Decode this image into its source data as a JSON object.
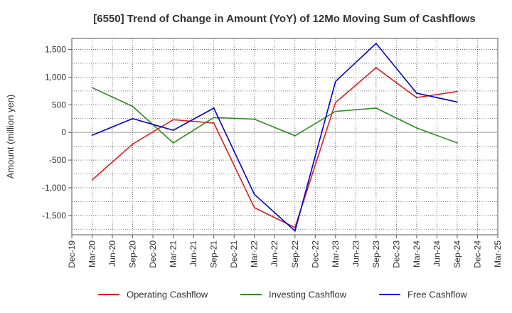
{
  "chart_data": {
    "type": "line",
    "title": "[6550]  Trend of Change in Amount (YoY) of 12Mo Moving Sum of Cashflows",
    "xlabel": "",
    "ylabel": "Amount (million yen)",
    "ylim": [
      -1850,
      1700
    ],
    "yticks": [
      1500,
      1000,
      500,
      0,
      -500,
      -1000,
      -1500
    ],
    "ytick_labels": [
      "1,500",
      "1,000",
      "500",
      "0",
      "-500",
      "-1,000",
      "-1,500"
    ],
    "categories": [
      "Dec-19",
      "Mar-20",
      "Jun-20",
      "Sep-20",
      "Dec-20",
      "Mar-21",
      "Jun-21",
      "Sep-21",
      "Dec-21",
      "Mar-22",
      "Jun-22",
      "Sep-22",
      "Dec-22",
      "Mar-23",
      "Jun-23",
      "Sep-23",
      "Dec-23",
      "Mar-24",
      "Jun-24",
      "Sep-24",
      "Dec-24",
      "Mar-25"
    ],
    "grid": true,
    "legend_position": "bottom",
    "series": [
      {
        "name": "Operating Cashflow",
        "color": "#e31a1c",
        "points": [
          {
            "x": "Mar-20",
            "y": -860
          },
          {
            "x": "Sep-20",
            "y": -210
          },
          {
            "x": "Mar-21",
            "y": 230
          },
          {
            "x": "Sep-21",
            "y": 170
          },
          {
            "x": "Mar-22",
            "y": -1360
          },
          {
            "x": "Sep-22",
            "y": -1720
          },
          {
            "x": "Mar-23",
            "y": 540
          },
          {
            "x": "Sep-23",
            "y": 1170
          },
          {
            "x": "Mar-24",
            "y": 630
          },
          {
            "x": "Sep-24",
            "y": 740
          }
        ]
      },
      {
        "name": "Investing Cashflow",
        "color": "#2e8b22",
        "points": [
          {
            "x": "Mar-20",
            "y": 810
          },
          {
            "x": "Sep-20",
            "y": 470
          },
          {
            "x": "Mar-21",
            "y": -190
          },
          {
            "x": "Sep-21",
            "y": 270
          },
          {
            "x": "Mar-22",
            "y": 240
          },
          {
            "x": "Sep-22",
            "y": -60
          },
          {
            "x": "Mar-23",
            "y": 380
          },
          {
            "x": "Sep-23",
            "y": 440
          },
          {
            "x": "Mar-24",
            "y": 80
          },
          {
            "x": "Sep-24",
            "y": -190
          }
        ]
      },
      {
        "name": "Free Cashflow",
        "color": "#0000d8",
        "points": [
          {
            "x": "Mar-20",
            "y": -50
          },
          {
            "x": "Sep-20",
            "y": 250
          },
          {
            "x": "Mar-21",
            "y": 40
          },
          {
            "x": "Sep-21",
            "y": 440
          },
          {
            "x": "Mar-22",
            "y": -1120
          },
          {
            "x": "Sep-22",
            "y": -1780
          },
          {
            "x": "Mar-23",
            "y": 920
          },
          {
            "x": "Sep-23",
            "y": 1610
          },
          {
            "x": "Mar-24",
            "y": 710
          },
          {
            "x": "Sep-24",
            "y": 550
          }
        ]
      }
    ]
  }
}
